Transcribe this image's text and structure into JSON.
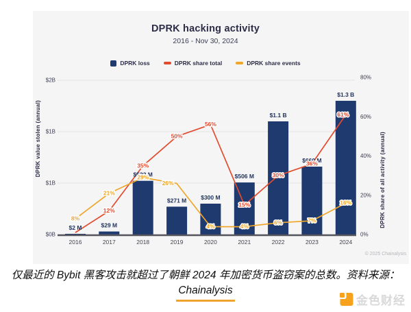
{
  "caption": {
    "line1": "仅最近的 Bybit 黑客攻击就超过了朝鲜 2024 年加密货币盗窃案的总数。资料来源：",
    "link": "Chainalysis"
  },
  "logo": {
    "text": "金色财经",
    "accent_color": "#f6a21d"
  },
  "chart_data": {
    "type": "bar+line combo",
    "title": "DPRK hacking activity",
    "subtitle": "2016 - Nov 30, 2024",
    "categories": [
      "2016",
      "2017",
      "2018",
      "2019",
      "2020",
      "2021",
      "2022",
      "2023",
      "2024"
    ],
    "bar_series": {
      "name": "DPRK loss",
      "color": "#1f3a6e",
      "values_musd": [
        2,
        29,
        522,
        271,
        300,
        506,
        1100,
        660,
        1300
      ],
      "labels": [
        "$2 M",
        "$29 M",
        "$522 M",
        "$271 M",
        "$300 M",
        "$506 M",
        "$1.1 B",
        "$660 M",
        "$1.3 B"
      ]
    },
    "line_series": [
      {
        "name": "DPRK share total",
        "color": "#e34b2d",
        "values_pct": [
          1,
          12,
          35,
          50,
          56,
          15,
          30,
          36,
          61
        ],
        "labels": [
          "",
          "12%",
          "35%",
          "50%",
          "56%",
          "15%",
          "30%",
          "36%",
          "61%"
        ]
      },
      {
        "name": "DPRK share events",
        "color": "#efa62b",
        "values_pct": [
          8,
          21,
          29,
          26,
          4,
          4,
          6,
          7,
          16
        ],
        "labels": [
          "8%",
          "21%",
          "29%",
          "26%",
          "4%",
          "4%",
          "6%",
          "7%",
          "16%"
        ]
      }
    ],
    "left_axis": {
      "title": "DPRK value stolen (annual)",
      "tick_labels": [
        "$0B",
        "$1B",
        "$1B",
        "$2B"
      ],
      "tick_values_busd": [
        0,
        0.5,
        1.0,
        1.5
      ]
    },
    "right_axis": {
      "title": "DPRK share of all activity (annual)",
      "tick_labels": [
        "0%",
        "20%",
        "40%",
        "60%",
        "80%"
      ],
      "range_pct": [
        0,
        80
      ]
    },
    "grid": "horizontal gridlines on, light gray",
    "legend_position": "top center",
    "copyright": "© 2025 Chainalysis"
  }
}
